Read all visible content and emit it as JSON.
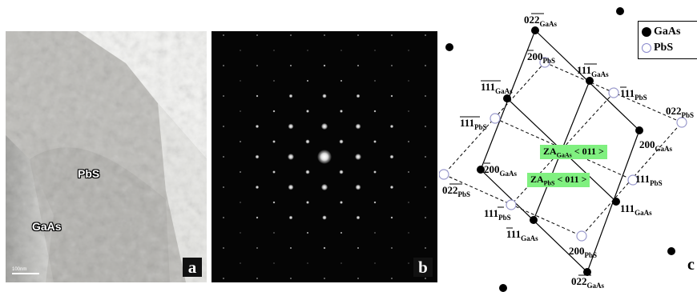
{
  "panel_a": {
    "label_pbs": "PbS",
    "label_gaas": "GaAs",
    "scale": "100nm",
    "tag": "a"
  },
  "panel_b": {
    "tag": "b"
  },
  "panel_c": {
    "tag": "c",
    "legend": {
      "gaas": "GaAs",
      "pbs": "PbS"
    },
    "zone_gaas": {
      "prefix": "ZA",
      "sub": "GaAs",
      "suffix": " < 011 >"
    },
    "zone_pbs": {
      "prefix": "ZA",
      "sub": "PbS",
      "suffix": " < 011 >"
    },
    "labels": [
      {
        "main": "022",
        "sub": "GaAs"
      },
      {
        "main": "200",
        "sub": "PbS"
      },
      {
        "main": "111",
        "sub": "GaAs"
      },
      {
        "main": "111",
        "sub": "GaAs"
      },
      {
        "main": "111",
        "sub": "PbS"
      },
      {
        "main": "022",
        "sub": "PbS"
      },
      {
        "main": "111",
        "sub": "PbS"
      },
      {
        "main": "200",
        "sub": "GaAs"
      },
      {
        "main": "200",
        "sub": "GaAs"
      },
      {
        "main": "111",
        "sub": "PbS"
      },
      {
        "main": "022",
        "sub": "PbS"
      },
      {
        "main": "111",
        "sub": "PbS"
      },
      {
        "main": "111",
        "sub": "GaAs"
      },
      {
        "main": "111",
        "sub": "GaAs"
      },
      {
        "main": "200",
        "sub": "PbS"
      },
      {
        "main": "022",
        "sub": "GaAs"
      }
    ]
  }
}
